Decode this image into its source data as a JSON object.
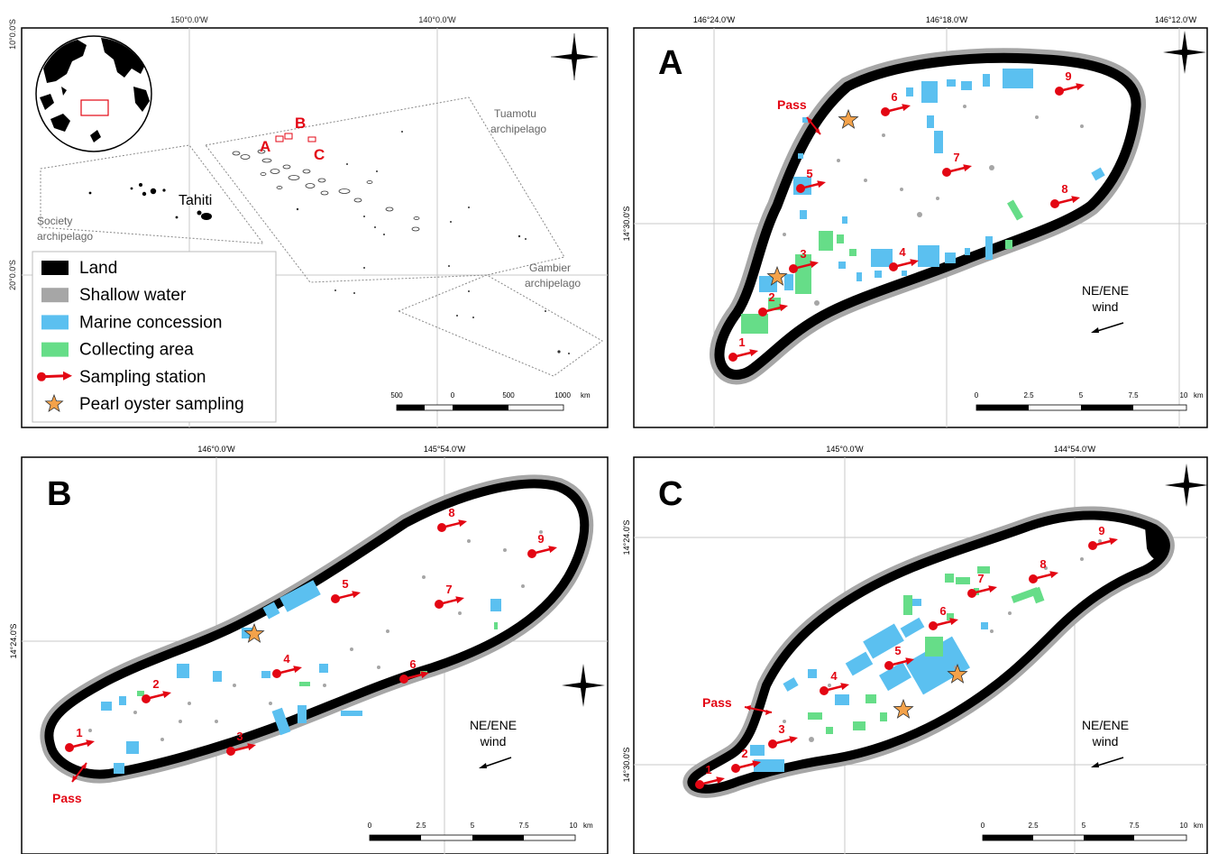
{
  "overview": {
    "coords": {
      "lon1": "150°0.0'W",
      "lon2": "140°0.0'W",
      "lat1": "10°0.0'S",
      "lat2": "20°0.0'S"
    },
    "tahiti": "Tahiti",
    "society": [
      "Society",
      "archipelago"
    ],
    "tuamotu": [
      "Tuamotu",
      "archipelago"
    ],
    "gambier": [
      "Gambier",
      "archipelago"
    ],
    "labels": {
      "a": "A",
      "b": "B",
      "c": "C"
    },
    "scale": {
      "t0": "500",
      "t1": "0",
      "t2": "500",
      "t3": "1000",
      "unit": "km"
    }
  },
  "legend": {
    "items": [
      {
        "label": "Land",
        "color": "#000000",
        "kind": "rect"
      },
      {
        "label": "Shallow water",
        "color": "#a6a6a6",
        "kind": "rect"
      },
      {
        "label": "Marine concession",
        "color": "#5bc0f0",
        "kind": "rect"
      },
      {
        "label": "Collecting area",
        "color": "#66dd88",
        "kind": "rect"
      },
      {
        "label": "Sampling station",
        "color": "#e30613",
        "kind": "arrow"
      },
      {
        "label": "Pearl oyster sampling",
        "color": "#f4a24a",
        "kind": "star"
      }
    ]
  },
  "panelA": {
    "letter": "A",
    "lon": [
      "146°24.0'W",
      "146°18.0'W",
      "146°12.0'W"
    ],
    "lat": "14°30.0'S",
    "pass": "Pass",
    "wind": [
      "NE/ENE",
      "wind"
    ],
    "scale": {
      "t0": "0",
      "t1": "2.5",
      "t2": "5",
      "t3": "7.5",
      "t4": "10",
      "unit": "km"
    }
  },
  "panelB": {
    "letter": "B",
    "lon": [
      "146°0.0'W",
      "145°54.0'W"
    ],
    "lat": "14°24.0'S",
    "pass": "Pass",
    "wind": [
      "NE/ENE",
      "wind"
    ],
    "scale": {
      "t0": "0",
      "t1": "2.5",
      "t2": "5",
      "t3": "7.5",
      "t4": "10",
      "unit": "km"
    }
  },
  "panelC": {
    "letter": "C",
    "lon": [
      "145°0.0'W",
      "144°54.0'W"
    ],
    "lat": [
      "14°24.0'S",
      "14°30.0'S"
    ],
    "pass": "Pass",
    "wind": [
      "NE/ENE",
      "wind"
    ],
    "scale": {
      "t0": "0",
      "t1": "2.5",
      "t2": "5",
      "t3": "7.5",
      "t4": "10",
      "unit": "km"
    }
  },
  "station_ids": [
    "1",
    "2",
    "3",
    "4",
    "5",
    "6",
    "7",
    "8",
    "9"
  ],
  "colors": {
    "red": "#e30613",
    "blue": "#5bc0f0",
    "green": "#66dd88",
    "grey": "#a6a6a6",
    "star": "#f4a24a",
    "grid": "#c8c8c8"
  }
}
